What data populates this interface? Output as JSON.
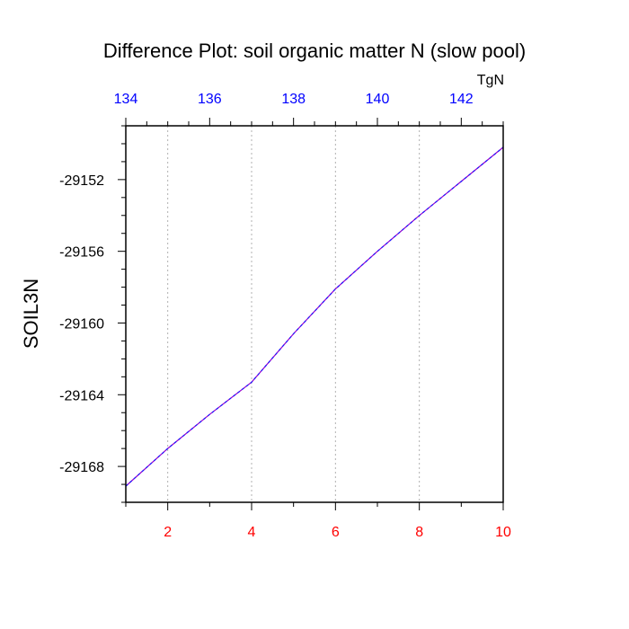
{
  "chart_data": {
    "type": "line",
    "title": "Difference Plot: soil organic matter N (slow pool)",
    "ylabel": "SOIL3N",
    "top_axis_unit": "TgN",
    "x": [
      1,
      2,
      3,
      4,
      5,
      6,
      7,
      8,
      9,
      10
    ],
    "y": [
      -29169.1,
      -29167.0,
      -29165.1,
      -29163.3,
      -29160.6,
      -29158.1,
      -29156.0,
      -29154.0,
      -29152.1,
      -29150.2
    ],
    "xlim": [
      1,
      10
    ],
    "ylim": [
      -29170.0,
      -29149.0
    ],
    "x_ticks": [
      2,
      4,
      6,
      8,
      10
    ],
    "x_tick_labels": [
      "2",
      "4",
      "6",
      "8",
      "10"
    ],
    "y_ticks": [
      -29152,
      -29156,
      -29160,
      -29164,
      -29168
    ],
    "y_tick_labels": [
      "-29152",
      "-29156",
      "-29160",
      "-29164",
      "-29168"
    ],
    "top_xlim": [
      134,
      143
    ],
    "top_ticks": [
      134,
      136,
      138,
      140,
      142
    ],
    "top_tick_labels": [
      "134",
      "136",
      "138",
      "140",
      "142"
    ],
    "grid": "vertical dashed",
    "colors": {
      "line": "#9900cc",
      "line_dash": "#1a1aff",
      "bottom_tick_labels": "#ff0000",
      "top_tick_labels": "#0000ff",
      "grid": "#b0b0b0"
    }
  }
}
